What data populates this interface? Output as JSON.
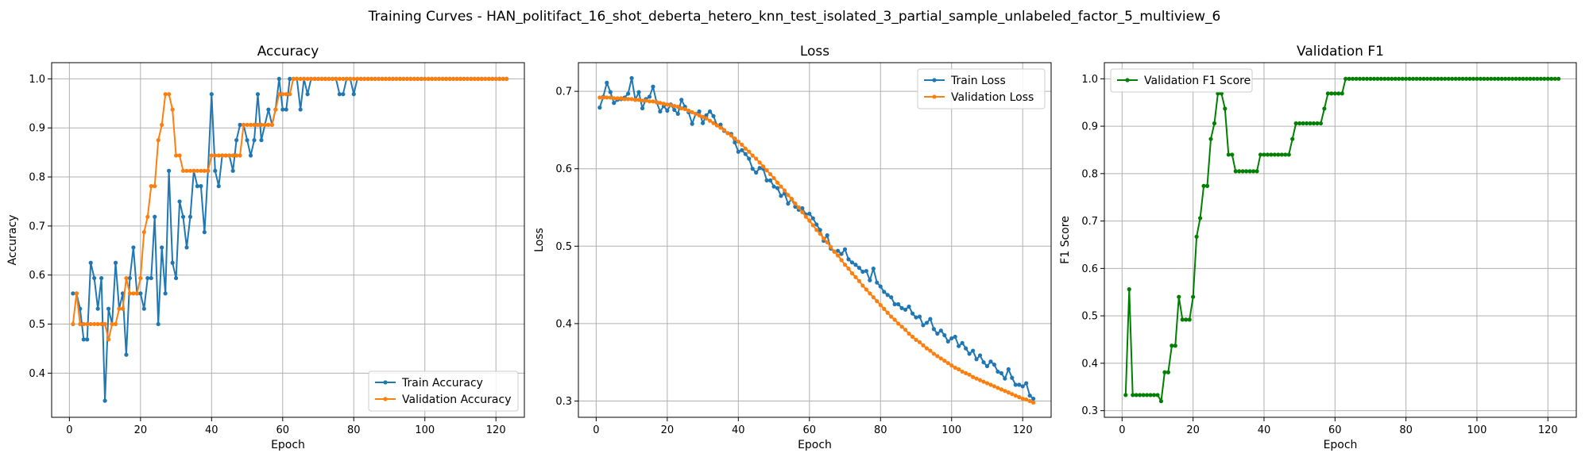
{
  "figure": {
    "suptitle": "Training Curves - HAN_politifact_16_shot_deberta_hetero_knn_test_isolated_3_partial_sample_unlabeled_factor_5_multiview_6"
  },
  "colors": {
    "train": "#1f77b4",
    "validation": "#ff7f0e",
    "f1": "#008000",
    "grid": "#b0b0b0"
  },
  "chart_data": [
    {
      "type": "line",
      "title": "Accuracy",
      "xlabel": "Epoch",
      "ylabel": "Accuracy",
      "xlim": [
        -5,
        128
      ],
      "ylim": [
        0.31,
        1.033
      ],
      "xticks": [
        0,
        20,
        40,
        60,
        80,
        100,
        120
      ],
      "yticks": [
        0.4,
        0.5,
        0.6,
        0.7,
        0.8,
        0.9,
        1.0
      ],
      "grid": true,
      "legend": "lower-right",
      "series": [
        {
          "name": "Train Accuracy",
          "color_key": "train",
          "x_range": [
            1,
            123
          ],
          "values": [
            0.5625,
            0.5625,
            0.53125,
            0.46875,
            0.46875,
            0.625,
            0.59375,
            0.53125,
            0.59375,
            0.34375,
            0.53125,
            0.5,
            0.625,
            0.53125,
            0.5625,
            0.4375,
            0.59375,
            0.65625,
            0.5625,
            0.5625,
            0.53125,
            0.59375,
            0.59375,
            0.71875,
            0.5,
            0.65625,
            0.5625,
            0.8125,
            0.625,
            0.59375,
            0.75,
            0.71875,
            0.65625,
            0.71875,
            0.8125,
            0.78125,
            0.78125,
            0.6875,
            0.8125,
            0.96875,
            0.8125,
            0.78125,
            0.84375,
            0.84375,
            0.84375,
            0.8125,
            0.875,
            0.90625,
            0.90625,
            0.875,
            0.84375,
            0.875,
            0.96875,
            0.875,
            0.90625,
            0.9375,
            0.90625,
            0.9375,
            1.0,
            0.9375,
            0.9375,
            1.0,
            1.0,
            1.0,
            0.9375,
            1.0,
            0.96875,
            1.0,
            1.0,
            1.0,
            1.0,
            1.0,
            1.0,
            1.0,
            1.0,
            0.96875,
            0.96875,
            1.0,
            1.0,
            0.96875,
            1.0,
            1.0,
            1.0,
            1.0,
            1.0,
            1.0,
            1.0,
            1.0,
            1.0,
            1.0,
            1.0,
            1.0,
            1.0,
            1.0,
            1.0,
            1.0,
            1.0,
            1.0,
            1.0,
            1.0,
            1.0,
            1.0,
            1.0,
            1.0,
            1.0,
            1.0,
            1.0,
            1.0,
            1.0,
            1.0,
            1.0,
            1.0,
            1.0,
            1.0,
            1.0,
            1.0,
            1.0,
            1.0,
            1.0,
            1.0,
            1.0,
            1.0,
            1.0
          ]
        },
        {
          "name": "Validation Accuracy",
          "color_key": "validation",
          "x_range": [
            1,
            123
          ],
          "values": [
            0.5,
            0.5625,
            0.5,
            0.5,
            0.5,
            0.5,
            0.5,
            0.5,
            0.5,
            0.5,
            0.46875,
            0.5,
            0.5,
            0.53125,
            0.53125,
            0.59375,
            0.5625,
            0.5625,
            0.5625,
            0.59375,
            0.6875,
            0.71875,
            0.78125,
            0.78125,
            0.875,
            0.90625,
            0.96875,
            0.96875,
            0.9375,
            0.84375,
            0.84375,
            0.8125,
            0.8125,
            0.8125,
            0.8125,
            0.8125,
            0.8125,
            0.8125,
            0.8125,
            0.84375,
            0.84375,
            0.84375,
            0.84375,
            0.84375,
            0.84375,
            0.84375,
            0.84375,
            0.84375,
            0.90625,
            0.90625,
            0.90625,
            0.90625,
            0.90625,
            0.90625,
            0.90625,
            0.90625,
            0.90625,
            0.9375,
            0.96875,
            0.96875,
            0.96875,
            0.96875,
            1.0,
            1.0,
            1.0,
            1.0,
            1.0,
            1.0,
            1.0,
            1.0,
            1.0,
            1.0,
            1.0,
            1.0,
            1.0,
            1.0,
            1.0,
            1.0,
            1.0,
            1.0,
            1.0,
            1.0,
            1.0,
            1.0,
            1.0,
            1.0,
            1.0,
            1.0,
            1.0,
            1.0,
            1.0,
            1.0,
            1.0,
            1.0,
            1.0,
            1.0,
            1.0,
            1.0,
            1.0,
            1.0,
            1.0,
            1.0,
            1.0,
            1.0,
            1.0,
            1.0,
            1.0,
            1.0,
            1.0,
            1.0,
            1.0,
            1.0,
            1.0,
            1.0,
            1.0,
            1.0,
            1.0,
            1.0,
            1.0,
            1.0,
            1.0,
            1.0,
            1.0
          ]
        }
      ]
    },
    {
      "type": "line",
      "title": "Loss",
      "xlabel": "Epoch",
      "ylabel": "Loss",
      "xlim": [
        -5,
        128
      ],
      "ylim": [
        0.279,
        0.737
      ],
      "xticks": [
        0,
        20,
        40,
        60,
        80,
        100,
        120
      ],
      "yticks": [
        0.3,
        0.4,
        0.5,
        0.6,
        0.7
      ],
      "grid": true,
      "legend": "upper-right",
      "series": [
        {
          "name": "Train Loss",
          "color_key": "train",
          "x_range": [
            1,
            123
          ],
          "values": [
            0.679,
            0.693,
            0.711,
            0.699,
            0.685,
            0.689,
            0.69,
            0.692,
            0.697,
            0.717,
            0.689,
            0.699,
            0.678,
            0.69,
            0.693,
            0.706,
            0.686,
            0.674,
            0.681,
            0.675,
            0.683,
            0.676,
            0.671,
            0.689,
            0.68,
            0.673,
            0.658,
            0.671,
            0.674,
            0.659,
            0.669,
            0.674,
            0.668,
            0.656,
            0.657,
            0.649,
            0.646,
            0.645,
            0.634,
            0.622,
            0.624,
            0.619,
            0.613,
            0.6,
            0.595,
            0.601,
            0.6,
            0.585,
            0.585,
            0.577,
            0.575,
            0.565,
            0.568,
            0.555,
            0.561,
            0.551,
            0.547,
            0.549,
            0.541,
            0.542,
            0.536,
            0.528,
            0.521,
            0.507,
            0.514,
            0.497,
            0.493,
            0.494,
            0.49,
            0.496,
            0.483,
            0.479,
            0.476,
            0.472,
            0.467,
            0.468,
            0.456,
            0.471,
            0.453,
            0.448,
            0.441,
            0.437,
            0.434,
            0.425,
            0.425,
            0.42,
            0.418,
            0.422,
            0.413,
            0.408,
            0.409,
            0.398,
            0.401,
            0.406,
            0.393,
            0.387,
            0.391,
            0.385,
            0.377,
            0.381,
            0.383,
            0.371,
            0.375,
            0.368,
            0.361,
            0.365,
            0.354,
            0.359,
            0.35,
            0.345,
            0.351,
            0.347,
            0.338,
            0.336,
            0.329,
            0.341,
            0.33,
            0.321,
            0.321,
            0.319,
            0.323,
            0.307,
            0.303
          ]
        },
        {
          "name": "Validation Loss",
          "color_key": "validation",
          "x_range": [
            1,
            123
          ],
          "values": [
            0.692,
            0.692,
            0.692,
            0.692,
            0.691,
            0.691,
            0.691,
            0.69,
            0.69,
            0.69,
            0.689,
            0.689,
            0.688,
            0.688,
            0.687,
            0.687,
            0.686,
            0.685,
            0.684,
            0.683,
            0.682,
            0.681,
            0.68,
            0.678,
            0.677,
            0.675,
            0.673,
            0.671,
            0.669,
            0.667,
            0.665,
            0.662,
            0.659,
            0.656,
            0.653,
            0.65,
            0.646,
            0.643,
            0.639,
            0.635,
            0.631,
            0.626,
            0.622,
            0.617,
            0.613,
            0.608,
            0.603,
            0.598,
            0.593,
            0.588,
            0.582,
            0.577,
            0.572,
            0.566,
            0.561,
            0.555,
            0.55,
            0.544,
            0.538,
            0.533,
            0.527,
            0.521,
            0.516,
            0.51,
            0.505,
            0.499,
            0.493,
            0.488,
            0.482,
            0.476,
            0.471,
            0.465,
            0.46,
            0.455,
            0.449,
            0.444,
            0.439,
            0.434,
            0.429,
            0.424,
            0.419,
            0.414,
            0.409,
            0.405,
            0.4,
            0.396,
            0.392,
            0.387,
            0.383,
            0.379,
            0.376,
            0.372,
            0.368,
            0.365,
            0.361,
            0.358,
            0.355,
            0.352,
            0.349,
            0.346,
            0.343,
            0.341,
            0.338,
            0.336,
            0.334,
            0.331,
            0.329,
            0.327,
            0.325,
            0.323,
            0.321,
            0.319,
            0.317,
            0.315,
            0.313,
            0.311,
            0.309,
            0.307,
            0.305,
            0.303,
            0.302,
            0.3,
            0.298
          ]
        }
      ]
    },
    {
      "type": "line",
      "title": "Validation F1",
      "xlabel": "Epoch",
      "ylabel": "F1 Score",
      "xlim": [
        -5,
        128
      ],
      "ylim": [
        0.286,
        1.034
      ],
      "xticks": [
        0,
        20,
        40,
        60,
        80,
        100,
        120
      ],
      "yticks": [
        0.3,
        0.4,
        0.5,
        0.6,
        0.7,
        0.8,
        0.9,
        1.0
      ],
      "grid": true,
      "legend": "upper-left",
      "series": [
        {
          "name": "Validation F1 Score",
          "color_key": "f1",
          "x_range": [
            1,
            123
          ],
          "values": [
            0.333,
            0.556,
            0.333,
            0.333,
            0.333,
            0.333,
            0.333,
            0.333,
            0.333,
            0.333,
            0.32,
            0.381,
            0.381,
            0.437,
            0.437,
            0.54,
            0.492,
            0.492,
            0.492,
            0.54,
            0.667,
            0.706,
            0.774,
            0.774,
            0.873,
            0.906,
            0.969,
            0.969,
            0.937,
            0.84,
            0.84,
            0.805,
            0.805,
            0.805,
            0.805,
            0.805,
            0.805,
            0.805,
            0.84,
            0.84,
            0.84,
            0.84,
            0.84,
            0.84,
            0.84,
            0.84,
            0.84,
            0.873,
            0.906,
            0.906,
            0.906,
            0.906,
            0.906,
            0.906,
            0.906,
            0.906,
            0.937,
            0.969,
            0.969,
            0.969,
            0.969,
            0.969,
            1.0,
            1.0,
            1.0,
            1.0,
            1.0,
            1.0,
            1.0,
            1.0,
            1.0,
            1.0,
            1.0,
            1.0,
            1.0,
            1.0,
            1.0,
            1.0,
            1.0,
            1.0,
            1.0,
            1.0,
            1.0,
            1.0,
            1.0,
            1.0,
            1.0,
            1.0,
            1.0,
            1.0,
            1.0,
            1.0,
            1.0,
            1.0,
            1.0,
            1.0,
            1.0,
            1.0,
            1.0,
            1.0,
            1.0,
            1.0,
            1.0,
            1.0,
            1.0,
            1.0,
            1.0,
            1.0,
            1.0,
            1.0,
            1.0,
            1.0,
            1.0,
            1.0,
            1.0,
            1.0,
            1.0,
            1.0,
            1.0,
            1.0,
            1.0,
            1.0,
            1.0
          ]
        }
      ]
    }
  ]
}
